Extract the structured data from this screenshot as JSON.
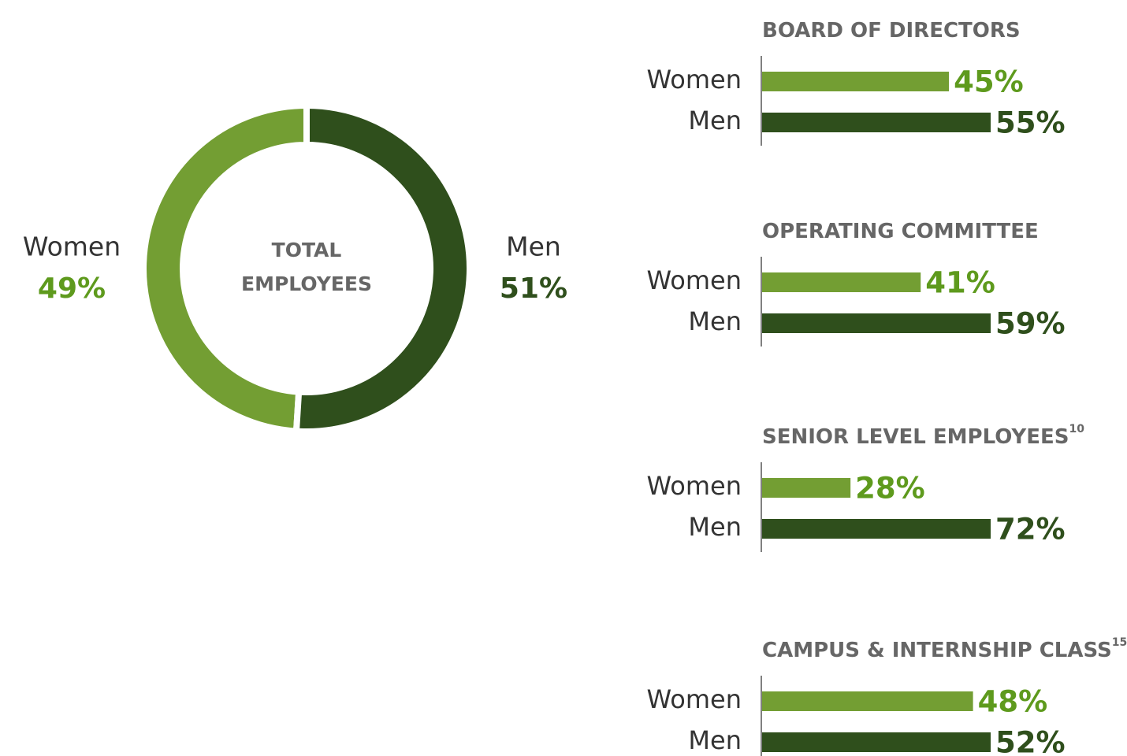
{
  "chart_data": [
    {
      "type": "pie",
      "title": "TOTAL EMPLOYEES",
      "categories": [
        "Women",
        "Men"
      ],
      "values": [
        49,
        51
      ],
      "value_labels": [
        "49%",
        "51%"
      ],
      "colors": [
        "#739e33",
        "#2f4f1c"
      ]
    },
    {
      "type": "hbar",
      "title": "BOARD OF DIRECTORS",
      "categories": [
        "Women",
        "Men"
      ],
      "values": [
        45,
        55
      ],
      "value_labels": [
        "45%",
        "55%"
      ],
      "colors": [
        "#739e33",
        "#2f4f1c"
      ],
      "xlim": [
        0,
        55
      ]
    },
    {
      "type": "hbar",
      "title": "OPERATING COMMITTEE",
      "categories": [
        "Women",
        "Men"
      ],
      "values": [
        41,
        59
      ],
      "value_labels": [
        "41%",
        "59%"
      ],
      "colors": [
        "#739e33",
        "#2f4f1c"
      ],
      "xlim": [
        0,
        59
      ]
    },
    {
      "type": "hbar",
      "title": "SENIOR LEVEL EMPLOYEES",
      "title_note": "10",
      "categories": [
        "Women",
        "Men"
      ],
      "values": [
        28,
        72
      ],
      "value_labels": [
        "28%",
        "72%"
      ],
      "colors": [
        "#739e33",
        "#2f4f1c"
      ],
      "xlim": [
        0,
        72
      ]
    },
    {
      "type": "hbar",
      "title": "CAMPUS & INTERNSHIP CLASS",
      "title_note": "15",
      "categories": [
        "Women",
        "Men"
      ],
      "values": [
        48,
        52
      ],
      "value_labels": [
        "48%",
        "52%"
      ],
      "colors": [
        "#739e33",
        "#2f4f1c"
      ],
      "xlim": [
        0,
        52
      ]
    }
  ]
}
